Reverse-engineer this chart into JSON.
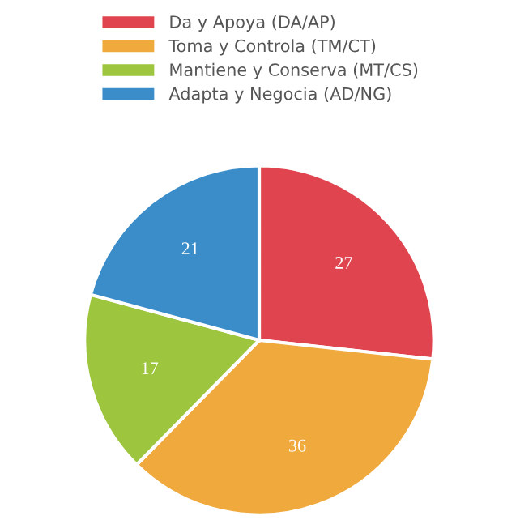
{
  "chart_data": {
    "type": "pie",
    "categories": [
      "Da y Apoya (DA/AP)",
      "Toma y Controla (TM/CT)",
      "Mantiene y Conserva (MT/CS)",
      "Adapta y Negocia (AD/NG)"
    ],
    "values": [
      27,
      36,
      17,
      21
    ],
    "colors": [
      "#e0444f",
      "#f0a93c",
      "#9dc63e",
      "#3a8dc9"
    ],
    "data_labels": true,
    "legend": "top"
  }
}
